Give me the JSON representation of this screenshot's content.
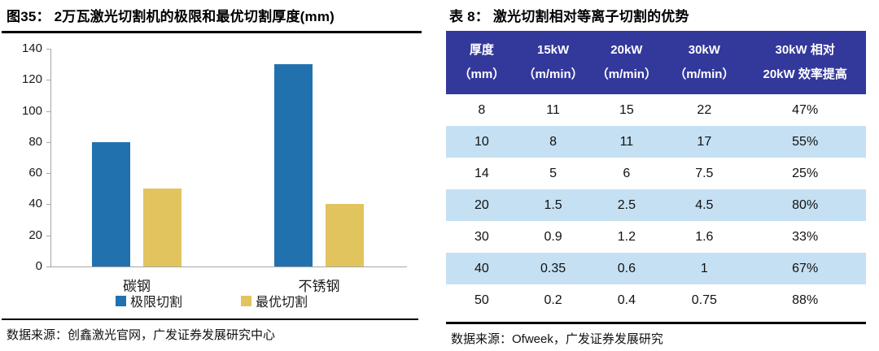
{
  "left_panel": {
    "title": "图35： 2万瓦激光切割机的极限和最优切割厚度(mm)",
    "source": "数据来源：创鑫激光官网，广发证券发展研究中心"
  },
  "right_panel": {
    "title": "表 8： 激光切割相对等离子切割的优势",
    "source": "数据来源：Ofweek，广发证券发展研究"
  },
  "chart_data": [
    {
      "type": "bar",
      "title": "2万瓦激光切割机的极限和最优切割厚度(mm)",
      "categories": [
        "碳钢",
        "不锈钢"
      ],
      "series": [
        {
          "name": "极限切割",
          "color": "#2171AE",
          "values": [
            80,
            130
          ]
        },
        {
          "name": "最优切割",
          "color": "#E2C45E",
          "values": [
            50,
            40
          ]
        }
      ],
      "ylim": [
        0,
        140
      ],
      "ytick_step": 20,
      "grid": false,
      "legend_position": "bottom",
      "axis_color": "#A6A6A6"
    },
    {
      "type": "table",
      "title": "激光切割相对等离子切割的优势",
      "columns": [
        {
          "line1": "厚度",
          "line2": "（mm）"
        },
        {
          "line1": "15kW",
          "line2": "（m/min）"
        },
        {
          "line1": "20kW",
          "line2": "（m/min）"
        },
        {
          "line1": "30kW",
          "line2": "（m/min）"
        },
        {
          "line1": "30kW 相对",
          "line2": "20kW 效率提高"
        }
      ],
      "rows": [
        [
          "8",
          "11",
          "15",
          "22",
          "47%"
        ],
        [
          "10",
          "8",
          "11",
          "17",
          "55%"
        ],
        [
          "14",
          "5",
          "6",
          "7.5",
          "25%"
        ],
        [
          "20",
          "1.5",
          "2.5",
          "4.5",
          "80%"
        ],
        [
          "30",
          "0.9",
          "1.2",
          "1.6",
          "33%"
        ],
        [
          "40",
          "0.35",
          "0.6",
          "1",
          "67%"
        ],
        [
          "50",
          "0.2",
          "0.4",
          "0.75",
          "88%"
        ]
      ],
      "header_bg": "#33389B",
      "header_text_color": "#FFFFFF",
      "stripe_bg": "#C5E0F2",
      "stripe_rows": [
        1,
        3,
        5
      ],
      "col_widths_pct": [
        17,
        17,
        18,
        19,
        29
      ]
    }
  ]
}
